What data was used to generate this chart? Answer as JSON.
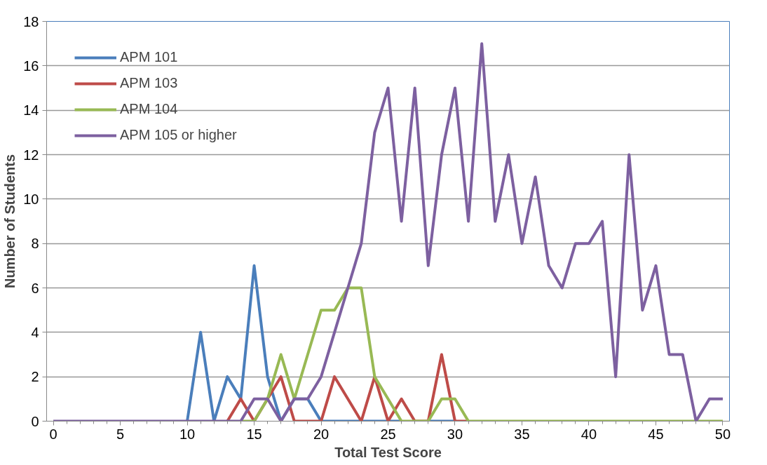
{
  "chart_data": {
    "type": "line",
    "xlabel": "Total Test Score",
    "ylabel": "Number of Students",
    "x": [
      0,
      1,
      2,
      3,
      4,
      5,
      6,
      7,
      8,
      9,
      10,
      11,
      12,
      13,
      14,
      15,
      16,
      17,
      18,
      19,
      20,
      21,
      22,
      23,
      24,
      25,
      26,
      27,
      28,
      29,
      30,
      31,
      32,
      33,
      34,
      35,
      36,
      37,
      38,
      39,
      40,
      41,
      42,
      43,
      44,
      45,
      46,
      47,
      48,
      49,
      50
    ],
    "series": [
      {
        "name": "APM 101",
        "color": "#4a7ebb",
        "values": [
          null,
          null,
          null,
          null,
          null,
          null,
          null,
          null,
          null,
          null,
          0,
          4,
          0,
          2,
          1,
          7,
          2,
          0,
          1,
          1,
          0,
          0,
          0,
          0,
          0,
          0,
          0,
          null,
          0,
          0,
          0,
          null,
          null,
          null,
          null,
          null,
          null,
          null,
          null,
          null,
          null,
          null,
          null,
          null,
          null,
          null,
          null,
          null,
          null,
          null,
          null
        ]
      },
      {
        "name": "APM 103",
        "color": "#be4b48",
        "values": [
          null,
          null,
          null,
          null,
          null,
          null,
          null,
          null,
          null,
          null,
          null,
          null,
          null,
          0,
          1,
          0,
          1,
          2,
          0,
          0,
          0,
          2,
          1,
          0,
          2,
          0,
          1,
          0,
          0,
          3,
          0,
          0,
          null,
          null,
          null,
          null,
          null,
          null,
          null,
          null,
          null,
          null,
          null,
          null,
          null,
          null,
          null,
          null,
          null,
          null,
          null
        ]
      },
      {
        "name": "APM 104",
        "color": "#98b954",
        "values": [
          null,
          null,
          null,
          null,
          null,
          null,
          null,
          null,
          null,
          null,
          null,
          null,
          null,
          null,
          0,
          0,
          1,
          3,
          1,
          3,
          5,
          5,
          6,
          6,
          2,
          1,
          0,
          0,
          0,
          1,
          1,
          0,
          0,
          0,
          0,
          0,
          0,
          0,
          0,
          0,
          0,
          0,
          0,
          0,
          0,
          0,
          0,
          0,
          0,
          0,
          0
        ]
      },
      {
        "name": "APM 105 or higher",
        "color": "#7d60a0",
        "values": [
          0,
          0,
          0,
          0,
          0,
          0,
          0,
          0,
          0,
          0,
          0,
          0,
          0,
          0,
          0,
          1,
          1,
          0,
          1,
          1,
          2,
          4,
          6,
          8,
          13,
          15,
          9,
          15,
          7,
          12,
          15,
          9,
          17,
          9,
          12,
          8,
          11,
          7,
          6,
          8,
          8,
          9,
          2,
          12,
          5,
          7,
          3,
          3,
          0,
          1,
          1
        ]
      }
    ],
    "xlim": [
      -0.5,
      50.5
    ],
    "xticks": [
      0,
      5,
      10,
      15,
      20,
      25,
      30,
      35,
      40,
      45,
      50
    ],
    "ylim": [
      0,
      18
    ],
    "yticks": [
      0,
      2,
      4,
      6,
      8,
      10,
      12,
      14,
      16,
      18
    ],
    "grid": "y",
    "legend": "top left",
    "marker": "none",
    "line_style": "solid"
  }
}
